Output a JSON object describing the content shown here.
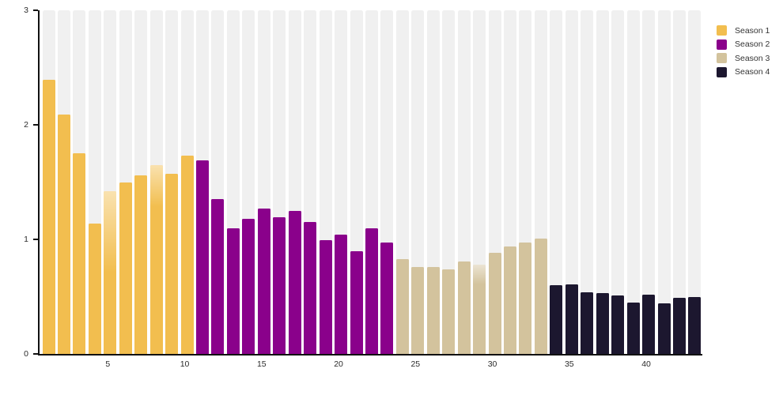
{
  "page": {
    "background": "#ffffff"
  },
  "legend": {
    "position": "top-right",
    "items": [
      {
        "label": "Season 1",
        "color": "#F2BE4F"
      },
      {
        "label": "Season 2",
        "color": "#8A018B"
      },
      {
        "label": "Season 3",
        "color": "#D3C39D"
      },
      {
        "label": "Season 4",
        "color": "#1C172F"
      }
    ]
  },
  "chart_data": {
    "type": "bar",
    "title": "",
    "xlabel": "",
    "ylabel": "",
    "ylim": [
      0,
      3
    ],
    "yticks": [
      "0",
      "1",
      "2",
      "3"
    ],
    "xticks": [
      5,
      10,
      15,
      20,
      25,
      30,
      35,
      40
    ],
    "grid": "off",
    "legend_position": "top-right",
    "background_stripes": {
      "color": "#F0F0F0",
      "full_height": true,
      "gap_color": "#ffffff"
    },
    "axis_color": "#111111",
    "total_bars": 43,
    "series": [
      {
        "name": "Season 1",
        "color": "#F2BE4F",
        "episodes": [
          1,
          2,
          3,
          4,
          5,
          6,
          7,
          8,
          9,
          10
        ],
        "values": [
          2.39,
          2.09,
          1.75,
          1.14,
          1.42,
          1.5,
          1.56,
          1.65,
          1.57,
          1.73
        ]
      },
      {
        "name": "Season 2",
        "color": "#8A018B",
        "episodes": [
          11,
          12,
          13,
          14,
          15,
          16,
          17,
          18,
          19,
          20,
          21,
          22,
          23
        ],
        "values": [
          1.69,
          1.35,
          1.1,
          1.18,
          1.27,
          1.19,
          1.25,
          1.15,
          0.99,
          1.04,
          0.9,
          1.1,
          0.97
        ]
      },
      {
        "name": "Season 3",
        "color": "#D3C39D",
        "episodes": [
          24,
          25,
          26,
          27,
          28,
          29,
          30,
          31,
          32,
          33
        ],
        "values": [
          0.83,
          0.76,
          0.76,
          0.74,
          0.81,
          0.78,
          0.88,
          0.94,
          0.97,
          1.01
        ]
      },
      {
        "name": "Season 4",
        "color": "#1C172F",
        "episodes": [
          34,
          35,
          36,
          37,
          38,
          39,
          40,
          41,
          42,
          43
        ],
        "values": [
          0.6,
          0.61,
          0.54,
          0.53,
          0.51,
          0.45,
          0.52,
          0.44,
          0.49,
          0.5
        ]
      }
    ],
    "faded_bar_tops": {
      "5": 0.5,
      "8": 0.22,
      "29": 0.22
    }
  }
}
